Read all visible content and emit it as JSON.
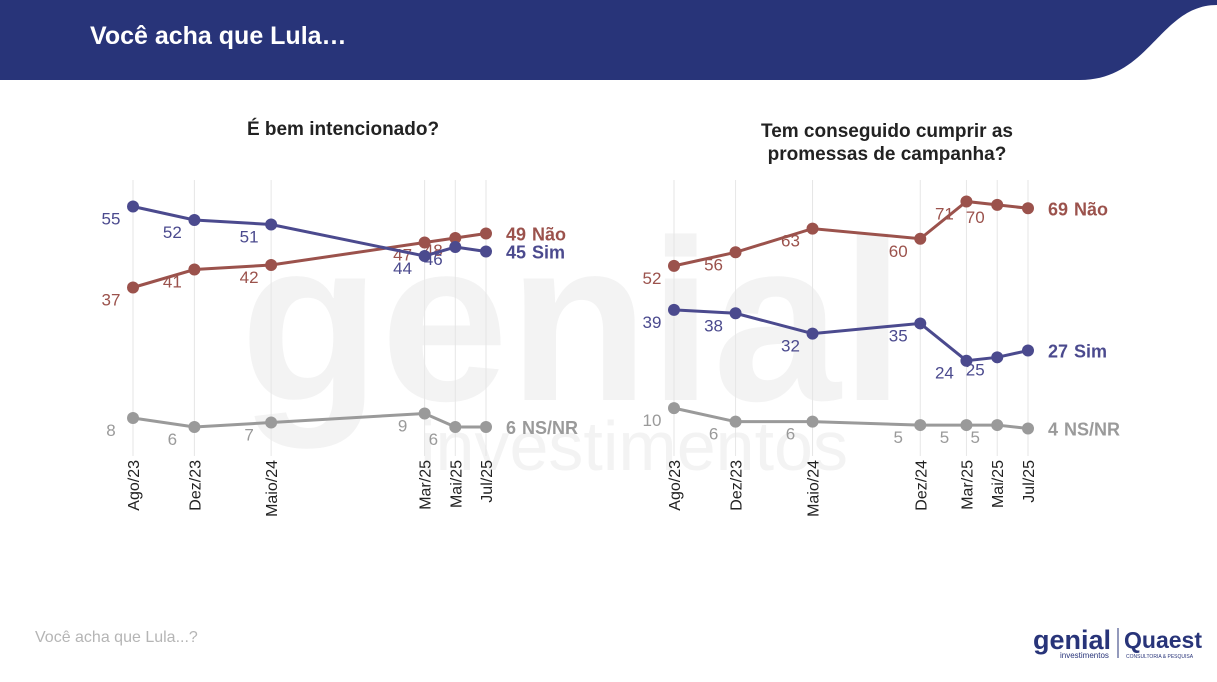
{
  "header": {
    "title": "Você acha que Lula…"
  },
  "watermark": {
    "brand": "genial",
    "sub": "investimentos"
  },
  "chart_data": [
    {
      "type": "line",
      "title": "É bem intencionado?",
      "categories": [
        "Ago/23",
        "Dez/23",
        "Maio/24",
        "Mar/25",
        "Mai/25",
        "Jul/25"
      ],
      "series": [
        {
          "name": "Não",
          "color": "#9b524c",
          "values": [
            37,
            41,
            42,
            47,
            48,
            49
          ]
        },
        {
          "name": "Sim",
          "color": "#4b4a8e",
          "values": [
            55,
            52,
            51,
            44,
            46,
            45
          ]
        },
        {
          "name": "NS/NR",
          "color": "#9a9a9a",
          "values": [
            8,
            6,
            7,
            9,
            6,
            6
          ]
        }
      ],
      "ylim": [
        0,
        60
      ]
    },
    {
      "type": "line",
      "title": "Tem conseguido cumprir as promessas de campanha?",
      "categories": [
        "Ago/23",
        "Dez/23",
        "Maio/24",
        "Dez/24",
        "Mar/25",
        "Mai/25",
        "Jul/25"
      ],
      "series": [
        {
          "name": "Não",
          "color": "#9b524c",
          "values": [
            52,
            56,
            63,
            60,
            71,
            70,
            69
          ]
        },
        {
          "name": "Sim",
          "color": "#4b4a8e",
          "values": [
            39,
            38,
            32,
            35,
            24,
            25,
            27
          ]
        },
        {
          "name": "NS/NR",
          "color": "#9a9a9a",
          "values": [
            10,
            6,
            6,
            5,
            5,
            5,
            4
          ]
        }
      ],
      "ylim": [
        0,
        80
      ]
    }
  ],
  "footer": {
    "text": "Você acha que Lula...?",
    "logo_genial": "genial",
    "logo_genial_sub": "investimentos",
    "logo_quaest": "Quaest",
    "logo_quaest_sub": "CONSULTORIA & PESQUISA"
  }
}
